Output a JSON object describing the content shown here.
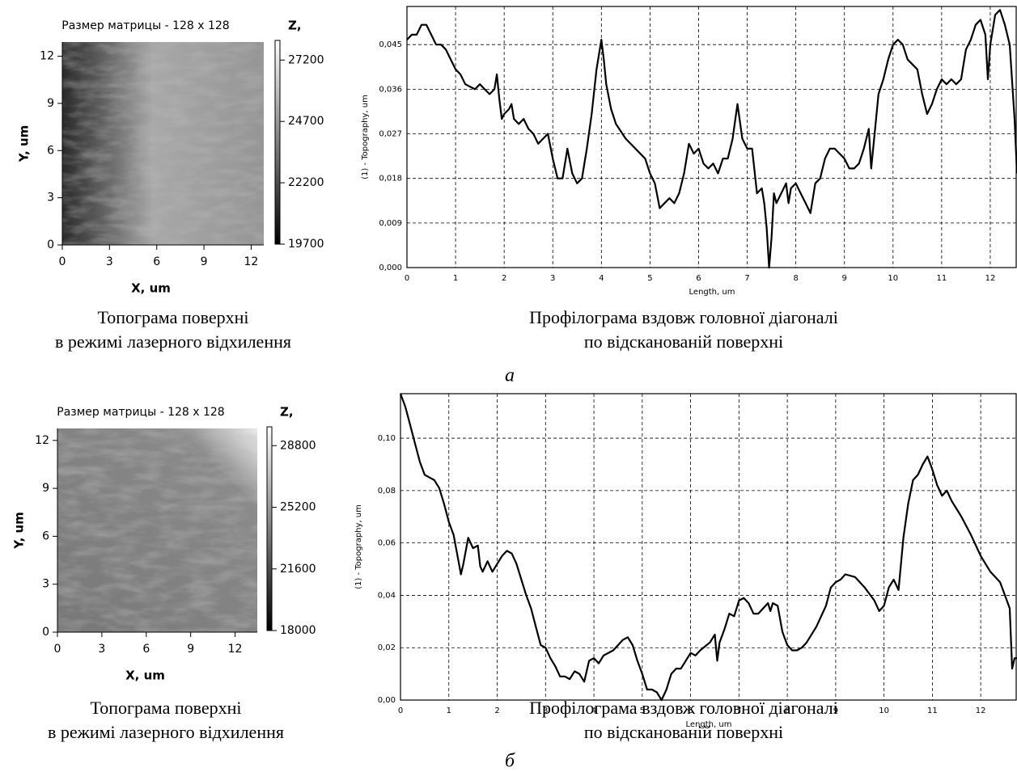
{
  "chart_data": [
    {
      "type": "heatmap",
      "title": "Размер матрицы - 128 x 128",
      "xlabel": "X, um",
      "ylabel": "Y, um",
      "xlim": [
        0,
        12.8
      ],
      "ylim": [
        0,
        12.9
      ],
      "xticks": [
        0,
        3,
        6,
        9,
        12
      ],
      "yticks": [
        0,
        3,
        6,
        9,
        12
      ],
      "colorbar_label": "Z,",
      "zlim": [
        19700,
        28000
      ],
      "zticks": [
        19700,
        22200,
        24700,
        27200
      ],
      "caption": [
        "Топограма поверхні",
        "в режимі лазерного відхилення"
      ]
    },
    {
      "type": "line",
      "xlabel": "Length, um",
      "ylabel": "(1) - Topography, um",
      "color": "#000000",
      "grid": true,
      "xlim": [
        0,
        12.55
      ],
      "ylim": [
        0,
        0.0527
      ],
      "xticks": [
        0,
        1,
        2,
        3,
        4,
        5,
        6,
        7,
        8,
        9,
        10,
        11,
        12
      ],
      "yticks": [
        {
          "value": 0,
          "label": "0,000"
        },
        {
          "value": 0.009,
          "label": "0,009"
        },
        {
          "value": 0.018,
          "label": "0,018"
        },
        {
          "value": 0.027,
          "label": "0,027"
        },
        {
          "value": 0.036,
          "label": "0,036"
        },
        {
          "value": 0.045,
          "label": "0,045"
        }
      ],
      "x": [
        0,
        0.1,
        0.2,
        0.3,
        0.4,
        0.5,
        0.6,
        0.7,
        0.8,
        0.9,
        1.0,
        1.1,
        1.2,
        1.4,
        1.5,
        1.6,
        1.7,
        1.8,
        1.85,
        1.9,
        1.95,
        2.0,
        2.1,
        2.15,
        2.2,
        2.3,
        2.4,
        2.5,
        2.6,
        2.7,
        2.8,
        2.9,
        3.0,
        3.1,
        3.2,
        3.3,
        3.4,
        3.5,
        3.6,
        3.7,
        3.8,
        3.9,
        4.0,
        4.05,
        4.1,
        4.2,
        4.3,
        4.5,
        4.7,
        4.9,
        5.0,
        5.1,
        5.2,
        5.3,
        5.4,
        5.5,
        5.6,
        5.7,
        5.8,
        5.9,
        6.0,
        6.1,
        6.2,
        6.3,
        6.4,
        6.5,
        6.6,
        6.7,
        6.8,
        6.9,
        7.0,
        7.1,
        7.2,
        7.3,
        7.35,
        7.4,
        7.45,
        7.5,
        7.55,
        7.6,
        7.7,
        7.8,
        7.85,
        7.9,
        8.0,
        8.1,
        8.2,
        8.3,
        8.4,
        8.5,
        8.6,
        8.7,
        8.8,
        8.9,
        9.0,
        9.1,
        9.2,
        9.3,
        9.4,
        9.5,
        9.55,
        9.6,
        9.7,
        9.8,
        9.9,
        10.0,
        10.1,
        10.2,
        10.3,
        10.4,
        10.5,
        10.6,
        10.7,
        10.8,
        10.9,
        11.0,
        11.1,
        11.2,
        11.3,
        11.4,
        11.5,
        11.6,
        11.7,
        11.8,
        11.9,
        11.95,
        12.0,
        12.1,
        12.2,
        12.3,
        12.4,
        12.5,
        12.55
      ],
      "values": [
        0.046,
        0.047,
        0.047,
        0.049,
        0.049,
        0.047,
        0.045,
        0.045,
        0.044,
        0.042,
        0.04,
        0.039,
        0.037,
        0.036,
        0.037,
        0.036,
        0.035,
        0.036,
        0.039,
        0.034,
        0.03,
        0.031,
        0.032,
        0.033,
        0.03,
        0.029,
        0.03,
        0.028,
        0.027,
        0.025,
        0.026,
        0.027,
        0.022,
        0.018,
        0.018,
        0.024,
        0.019,
        0.017,
        0.018,
        0.024,
        0.031,
        0.04,
        0.046,
        0.042,
        0.037,
        0.032,
        0.029,
        0.026,
        0.024,
        0.022,
        0.019,
        0.017,
        0.012,
        0.013,
        0.014,
        0.013,
        0.015,
        0.019,
        0.025,
        0.023,
        0.024,
        0.021,
        0.02,
        0.021,
        0.019,
        0.022,
        0.022,
        0.026,
        0.033,
        0.026,
        0.024,
        0.024,
        0.015,
        0.016,
        0.013,
        0.008,
        0.0,
        0.006,
        0.015,
        0.013,
        0.015,
        0.017,
        0.013,
        0.016,
        0.017,
        0.015,
        0.013,
        0.011,
        0.017,
        0.018,
        0.022,
        0.024,
        0.024,
        0.023,
        0.022,
        0.02,
        0.02,
        0.021,
        0.024,
        0.028,
        0.02,
        0.025,
        0.035,
        0.038,
        0.042,
        0.045,
        0.046,
        0.045,
        0.042,
        0.041,
        0.04,
        0.035,
        0.031,
        0.033,
        0.036,
        0.038,
        0.037,
        0.038,
        0.037,
        0.038,
        0.044,
        0.046,
        0.049,
        0.05,
        0.047,
        0.038,
        0.045,
        0.051,
        0.052,
        0.049,
        0.045,
        0.03,
        0.019
      ],
      "caption": [
        "Профілограма вздовж головної діагоналі",
        "по відсканованій поверхні"
      ]
    },
    {
      "type": "heatmap",
      "title": "Размер матрицы - 128 x 128",
      "xlabel": "X, um",
      "ylabel": "Y, um",
      "xlim": [
        0,
        13.5
      ],
      "ylim": [
        0,
        12.75
      ],
      "xticks": [
        0,
        3,
        6,
        9,
        12
      ],
      "yticks": [
        0,
        3,
        6,
        9,
        12
      ],
      "colorbar_label": "Z,",
      "zlim": [
        18000,
        29900
      ],
      "zticks": [
        18000,
        21600,
        25200,
        28800
      ],
      "caption": [
        "Топограма  поверхні",
        "в режимі лазерного відхилення"
      ]
    },
    {
      "type": "line",
      "xlabel": "Length, um",
      "ylabel": "(1) - Topography, um",
      "color": "#000000",
      "grid": true,
      "xlim": [
        0,
        12.75
      ],
      "ylim": [
        0,
        0.117
      ],
      "xticks": [
        0,
        1,
        2,
        3,
        4,
        5,
        6,
        7,
        8,
        9,
        10,
        11,
        12
      ],
      "yticks": [
        {
          "value": 0,
          "label": "0,00"
        },
        {
          "value": 0.02,
          "label": "0,02"
        },
        {
          "value": 0.04,
          "label": "0,04"
        },
        {
          "value": 0.06,
          "label": "0,06"
        },
        {
          "value": 0.08,
          "label": "0,08"
        },
        {
          "value": 0.1,
          "label": "0,10"
        }
      ],
      "x": [
        0,
        0.1,
        0.2,
        0.3,
        0.4,
        0.5,
        0.6,
        0.7,
        0.8,
        0.9,
        1.0,
        1.1,
        1.2,
        1.25,
        1.3,
        1.4,
        1.5,
        1.6,
        1.65,
        1.7,
        1.8,
        1.9,
        2.0,
        2.1,
        2.2,
        2.3,
        2.4,
        2.5,
        2.6,
        2.7,
        2.8,
        2.9,
        3.0,
        3.1,
        3.2,
        3.3,
        3.4,
        3.5,
        3.6,
        3.7,
        3.8,
        3.9,
        4.0,
        4.1,
        4.2,
        4.4,
        4.6,
        4.7,
        4.8,
        4.9,
        5.0,
        5.1,
        5.2,
        5.3,
        5.4,
        5.5,
        5.6,
        5.7,
        5.8,
        5.9,
        6.0,
        6.1,
        6.2,
        6.4,
        6.5,
        6.55,
        6.6,
        6.7,
        6.8,
        6.9,
        7.0,
        7.1,
        7.2,
        7.3,
        7.4,
        7.5,
        7.6,
        7.65,
        7.7,
        7.8,
        7.9,
        8.0,
        8.1,
        8.2,
        8.3,
        8.4,
        8.6,
        8.8,
        8.9,
        9.0,
        9.1,
        9.2,
        9.4,
        9.6,
        9.8,
        9.9,
        10.0,
        10.1,
        10.2,
        10.3,
        10.4,
        10.5,
        10.6,
        10.7,
        10.8,
        10.9,
        11.0,
        11.1,
        11.2,
        11.3,
        11.4,
        11.6,
        11.8,
        12.0,
        12.2,
        12.4,
        12.5,
        12.6,
        12.65,
        12.7,
        12.75
      ],
      "values": [
        0.117,
        0.112,
        0.105,
        0.098,
        0.091,
        0.086,
        0.085,
        0.084,
        0.081,
        0.075,
        0.068,
        0.063,
        0.053,
        0.048,
        0.052,
        0.062,
        0.058,
        0.059,
        0.051,
        0.049,
        0.053,
        0.049,
        0.052,
        0.055,
        0.057,
        0.056,
        0.052,
        0.046,
        0.04,
        0.035,
        0.028,
        0.021,
        0.02,
        0.016,
        0.013,
        0.009,
        0.009,
        0.008,
        0.011,
        0.01,
        0.007,
        0.015,
        0.016,
        0.014,
        0.017,
        0.019,
        0.023,
        0.024,
        0.021,
        0.015,
        0.01,
        0.004,
        0.004,
        0.003,
        0.0,
        0.004,
        0.01,
        0.012,
        0.012,
        0.015,
        0.018,
        0.017,
        0.019,
        0.022,
        0.025,
        0.015,
        0.022,
        0.027,
        0.033,
        0.032,
        0.038,
        0.039,
        0.037,
        0.033,
        0.033,
        0.035,
        0.037,
        0.034,
        0.037,
        0.036,
        0.026,
        0.021,
        0.019,
        0.019,
        0.02,
        0.022,
        0.028,
        0.036,
        0.043,
        0.045,
        0.046,
        0.048,
        0.047,
        0.043,
        0.038,
        0.034,
        0.036,
        0.043,
        0.046,
        0.042,
        0.062,
        0.075,
        0.084,
        0.086,
        0.09,
        0.093,
        0.088,
        0.082,
        0.078,
        0.08,
        0.076,
        0.07,
        0.063,
        0.055,
        0.049,
        0.045,
        0.04,
        0.035,
        0.012,
        0.016,
        0.016
      ],
      "caption": [
        "Профілограма вздовж головної діагоналі",
        "по відсканованій поверхні"
      ]
    }
  ],
  "panel_labels": [
    "а",
    "б"
  ]
}
